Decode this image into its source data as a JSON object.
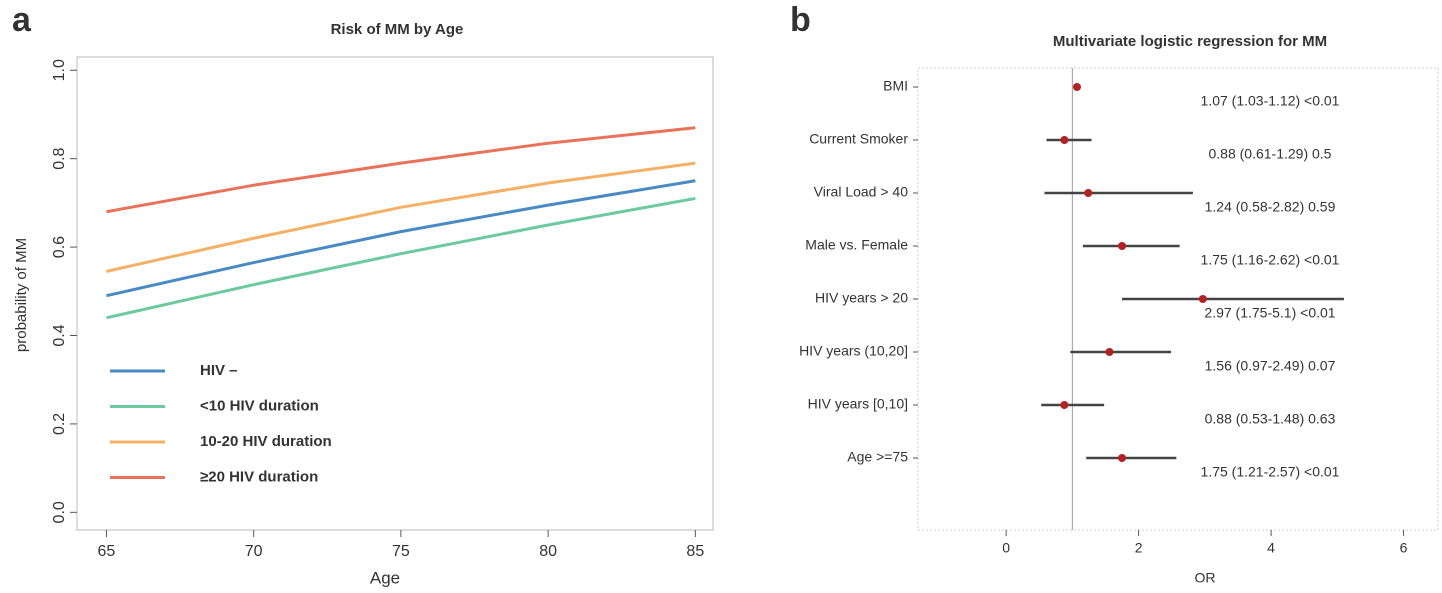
{
  "chart_data": [
    {
      "type": "line",
      "panel_label": "a",
      "title": "Risk of MM by Age",
      "xlabel": "Age",
      "ylabel": "probability of MM",
      "x": [
        65,
        70,
        75,
        80,
        85
      ],
      "series": [
        {
          "name": "HIV –",
          "color": "#4a8ac4",
          "values": [
            0.49,
            0.565,
            0.635,
            0.695,
            0.75
          ]
        },
        {
          "name": "<10 HIV duration",
          "color": "#6cc9a0",
          "values": [
            0.44,
            0.515,
            0.585,
            0.65,
            0.71
          ]
        },
        {
          "name": "10-20 HIV duration",
          "color": "#f4b066",
          "values": [
            0.545,
            0.62,
            0.69,
            0.745,
            0.79
          ]
        },
        {
          "name": "≥20 HIV duration",
          "color": "#e8735a",
          "values": [
            0.68,
            0.74,
            0.79,
            0.835,
            0.87
          ]
        }
      ],
      "xlim": [
        64,
        85.6
      ],
      "ylim": [
        -0.04,
        1.03
      ],
      "xticks": [
        65,
        70,
        75,
        80,
        85
      ],
      "yticks": [
        {
          "value": 0,
          "label": "0.0"
        },
        0.2,
        0.4,
        0.6,
        0.8,
        {
          "value": 1,
          "label": "1.0"
        }
      ],
      "legend": "lower left"
    },
    {
      "type": "forest",
      "panel_label": "b",
      "title": "Multivariate logistic regression for MM",
      "xlabel": "OR",
      "categories": [
        "BMI",
        "Current Smoker",
        "Viral Load > 40",
        "Male vs. Female",
        "HIV years > 20",
        "HIV years (10,20]",
        "HIV years [0,10]",
        "Age >=75"
      ],
      "values": [
        1.07,
        0.88,
        1.24,
        1.75,
        2.97,
        1.56,
        0.88,
        1.75
      ],
      "lower": [
        1.03,
        0.61,
        0.58,
        1.16,
        1.75,
        0.97,
        0.53,
        1.21
      ],
      "upper": [
        1.12,
        1.29,
        2.82,
        2.62,
        5.1,
        2.49,
        1.48,
        2.57
      ],
      "value_labels": [
        "1.07 (1.03-1.12) <0.01",
        "0.88 (0.61-1.29) 0.5",
        "1.24 (0.58-2.82) 0.59",
        "1.75 (1.16-2.62) <0.01",
        "2.97 (1.75-5.1) <0.01",
        "1.56 (0.97-2.49) 0.07",
        "0.88 (0.53-1.48) 0.63",
        "1.75 (1.21-2.57) <0.01"
      ],
      "color": "#b22222",
      "reference_line": 1,
      "xlim": [
        -1.33,
        6.52
      ],
      "xticks": [
        0,
        2,
        4,
        6
      ]
    }
  ]
}
